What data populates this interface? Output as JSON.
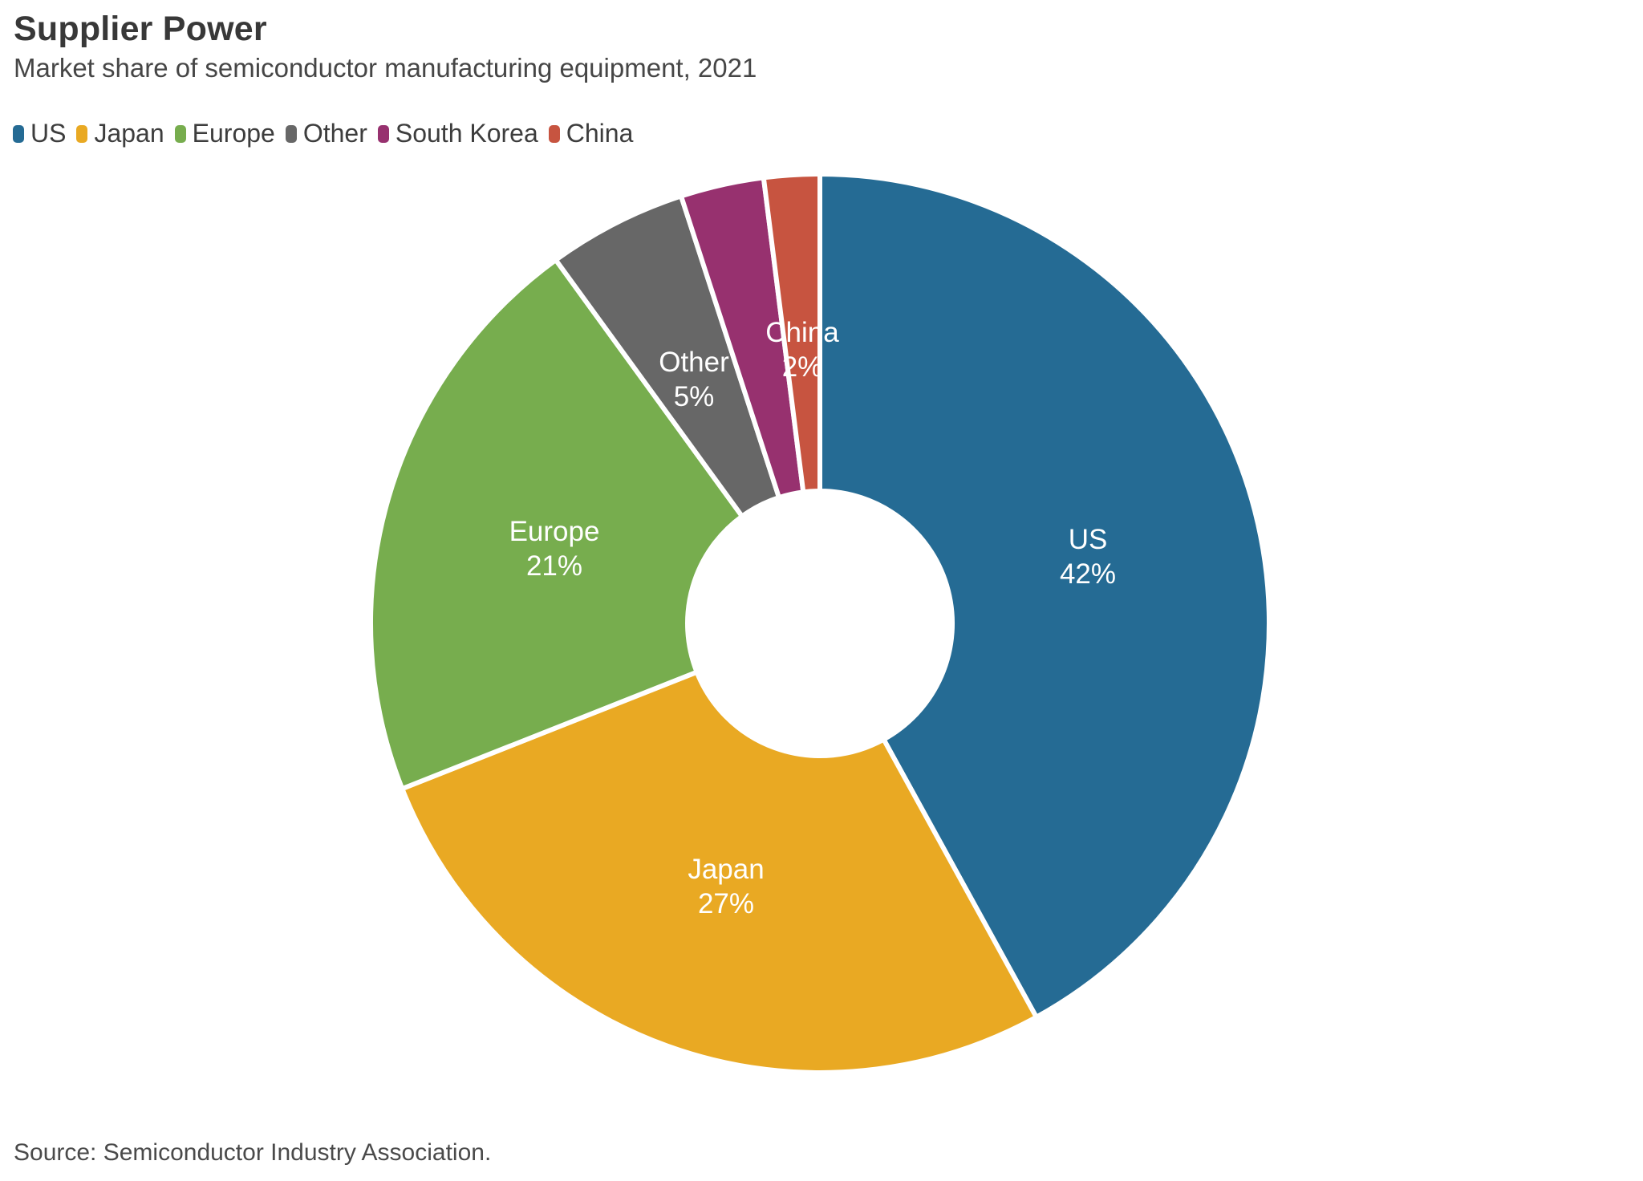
{
  "header": {
    "title": "Supplier Power",
    "subtitle": "Market share of semiconductor manufacturing equipment, 2021"
  },
  "footer": {
    "source": "Source: Semiconductor Industry Association."
  },
  "colors": {
    "title_text": "#383838",
    "subtitle_text": "#464646",
    "legend_text": "#3d3d3d",
    "source_text": "#4a4a4a",
    "slice_divider": "#ffffff",
    "slice_label_text": "#ffffff"
  },
  "chart_data": {
    "type": "pie",
    "subtype": "donut",
    "title": "Supplier Power",
    "subtitle": "Market share of semiconductor manufacturing equipment, 2021",
    "unit": "%",
    "total": 100,
    "start_angle_deg": 0,
    "direction": "clockwise",
    "legend_position": "top-left",
    "legend_entries": [
      "US",
      "Japan",
      "Europe",
      "Other",
      "South Korea",
      "China"
    ],
    "slices": [
      {
        "label": "US",
        "value": 42,
        "display": "42%",
        "color": "#256B94",
        "show_label": true
      },
      {
        "label": "Japan",
        "value": 27,
        "display": "27%",
        "color": "#E9A923",
        "show_label": true
      },
      {
        "label": "Europe",
        "value": 21,
        "display": "21%",
        "color": "#77AD4E",
        "show_label": true
      },
      {
        "label": "Other",
        "value": 5,
        "display": "5%",
        "color": "#676767",
        "show_label": true
      },
      {
        "label": "South Korea",
        "value": 3,
        "display": "3%",
        "color": "#97316F",
        "show_label": false
      },
      {
        "label": "China",
        "value": 2,
        "display": "2%",
        "color": "#C75440",
        "show_label": true
      }
    ]
  }
}
